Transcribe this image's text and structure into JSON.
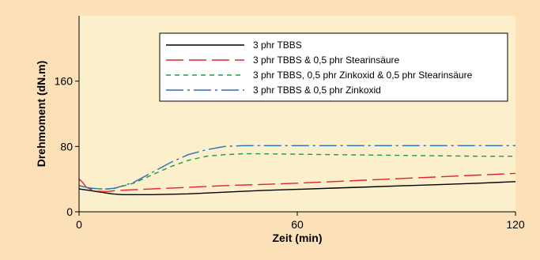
{
  "chart_data": {
    "type": "line",
    "title": "",
    "xlabel": "Zeit (min)",
    "ylabel": "Drehmoment (dN.m)",
    "xlim": [
      0,
      120
    ],
    "ylim": [
      0,
      240
    ],
    "x_ticks": [
      0,
      60,
      120
    ],
    "y_ticks": [
      0,
      80,
      160
    ],
    "x_tick_labels": [
      "0",
      "60",
      "120"
    ],
    "y_tick_labels": [
      "0",
      "80",
      "160"
    ],
    "grid": false,
    "legend_position": "top-center",
    "colors": {
      "page_background": "#fbe0b8",
      "plot_background": "#fbefcc",
      "legend_background": "#ffffff"
    },
    "series": [
      {
        "name": "3 phr TBBS",
        "color": "#000000",
        "dash": "solid",
        "x": [
          0,
          3,
          6,
          9,
          12,
          15,
          20,
          30,
          40,
          50,
          60,
          70,
          80,
          90,
          100,
          110,
          120
        ],
        "y": [
          28,
          26,
          24,
          22,
          21,
          21,
          21,
          22,
          24,
          26,
          27.5,
          29,
          30.5,
          32,
          33.5,
          35,
          37
        ]
      },
      {
        "name": "3 phr TBBS & 0,5 phr Stearinsäure",
        "color": "#e4242d",
        "dash": "long",
        "x": [
          0,
          1,
          2,
          4,
          6,
          8,
          10,
          15,
          20,
          30,
          40,
          50,
          60,
          70,
          80,
          90,
          100,
          110,
          120
        ],
        "y": [
          40,
          36,
          30,
          26,
          25,
          25,
          26,
          27,
          28,
          30,
          32,
          33.5,
          35,
          37,
          39,
          41,
          43,
          45,
          47
        ]
      },
      {
        "name": "3 phr TBBS, 0,5 phr Zinkoxid & 0,5 phr Stearinsäure",
        "color": "#1e9b4a",
        "dash": "short",
        "x": [
          0,
          3,
          6,
          8,
          10,
          15,
          20,
          25,
          30,
          35,
          40,
          45,
          50,
          60,
          70,
          80,
          90,
          100,
          110,
          120
        ],
        "y": [
          32,
          29,
          28,
          28,
          29,
          35,
          45,
          55,
          63,
          68,
          70,
          71,
          71,
          70.5,
          70,
          69.5,
          69,
          68.5,
          68,
          68
        ]
      },
      {
        "name": "3 phr TBBS & 0,5 phr Zinkoxid",
        "color": "#2a6fb8",
        "dash": "dashdot",
        "x": [
          0,
          3,
          6,
          8,
          10,
          15,
          20,
          25,
          30,
          35,
          40,
          45,
          50,
          60,
          70,
          80,
          90,
          100,
          110,
          120
        ],
        "y": [
          32,
          29,
          28,
          28,
          29,
          36,
          48,
          60,
          70,
          76,
          80,
          81,
          81,
          81,
          81,
          81,
          81,
          81,
          81,
          81
        ]
      }
    ]
  }
}
